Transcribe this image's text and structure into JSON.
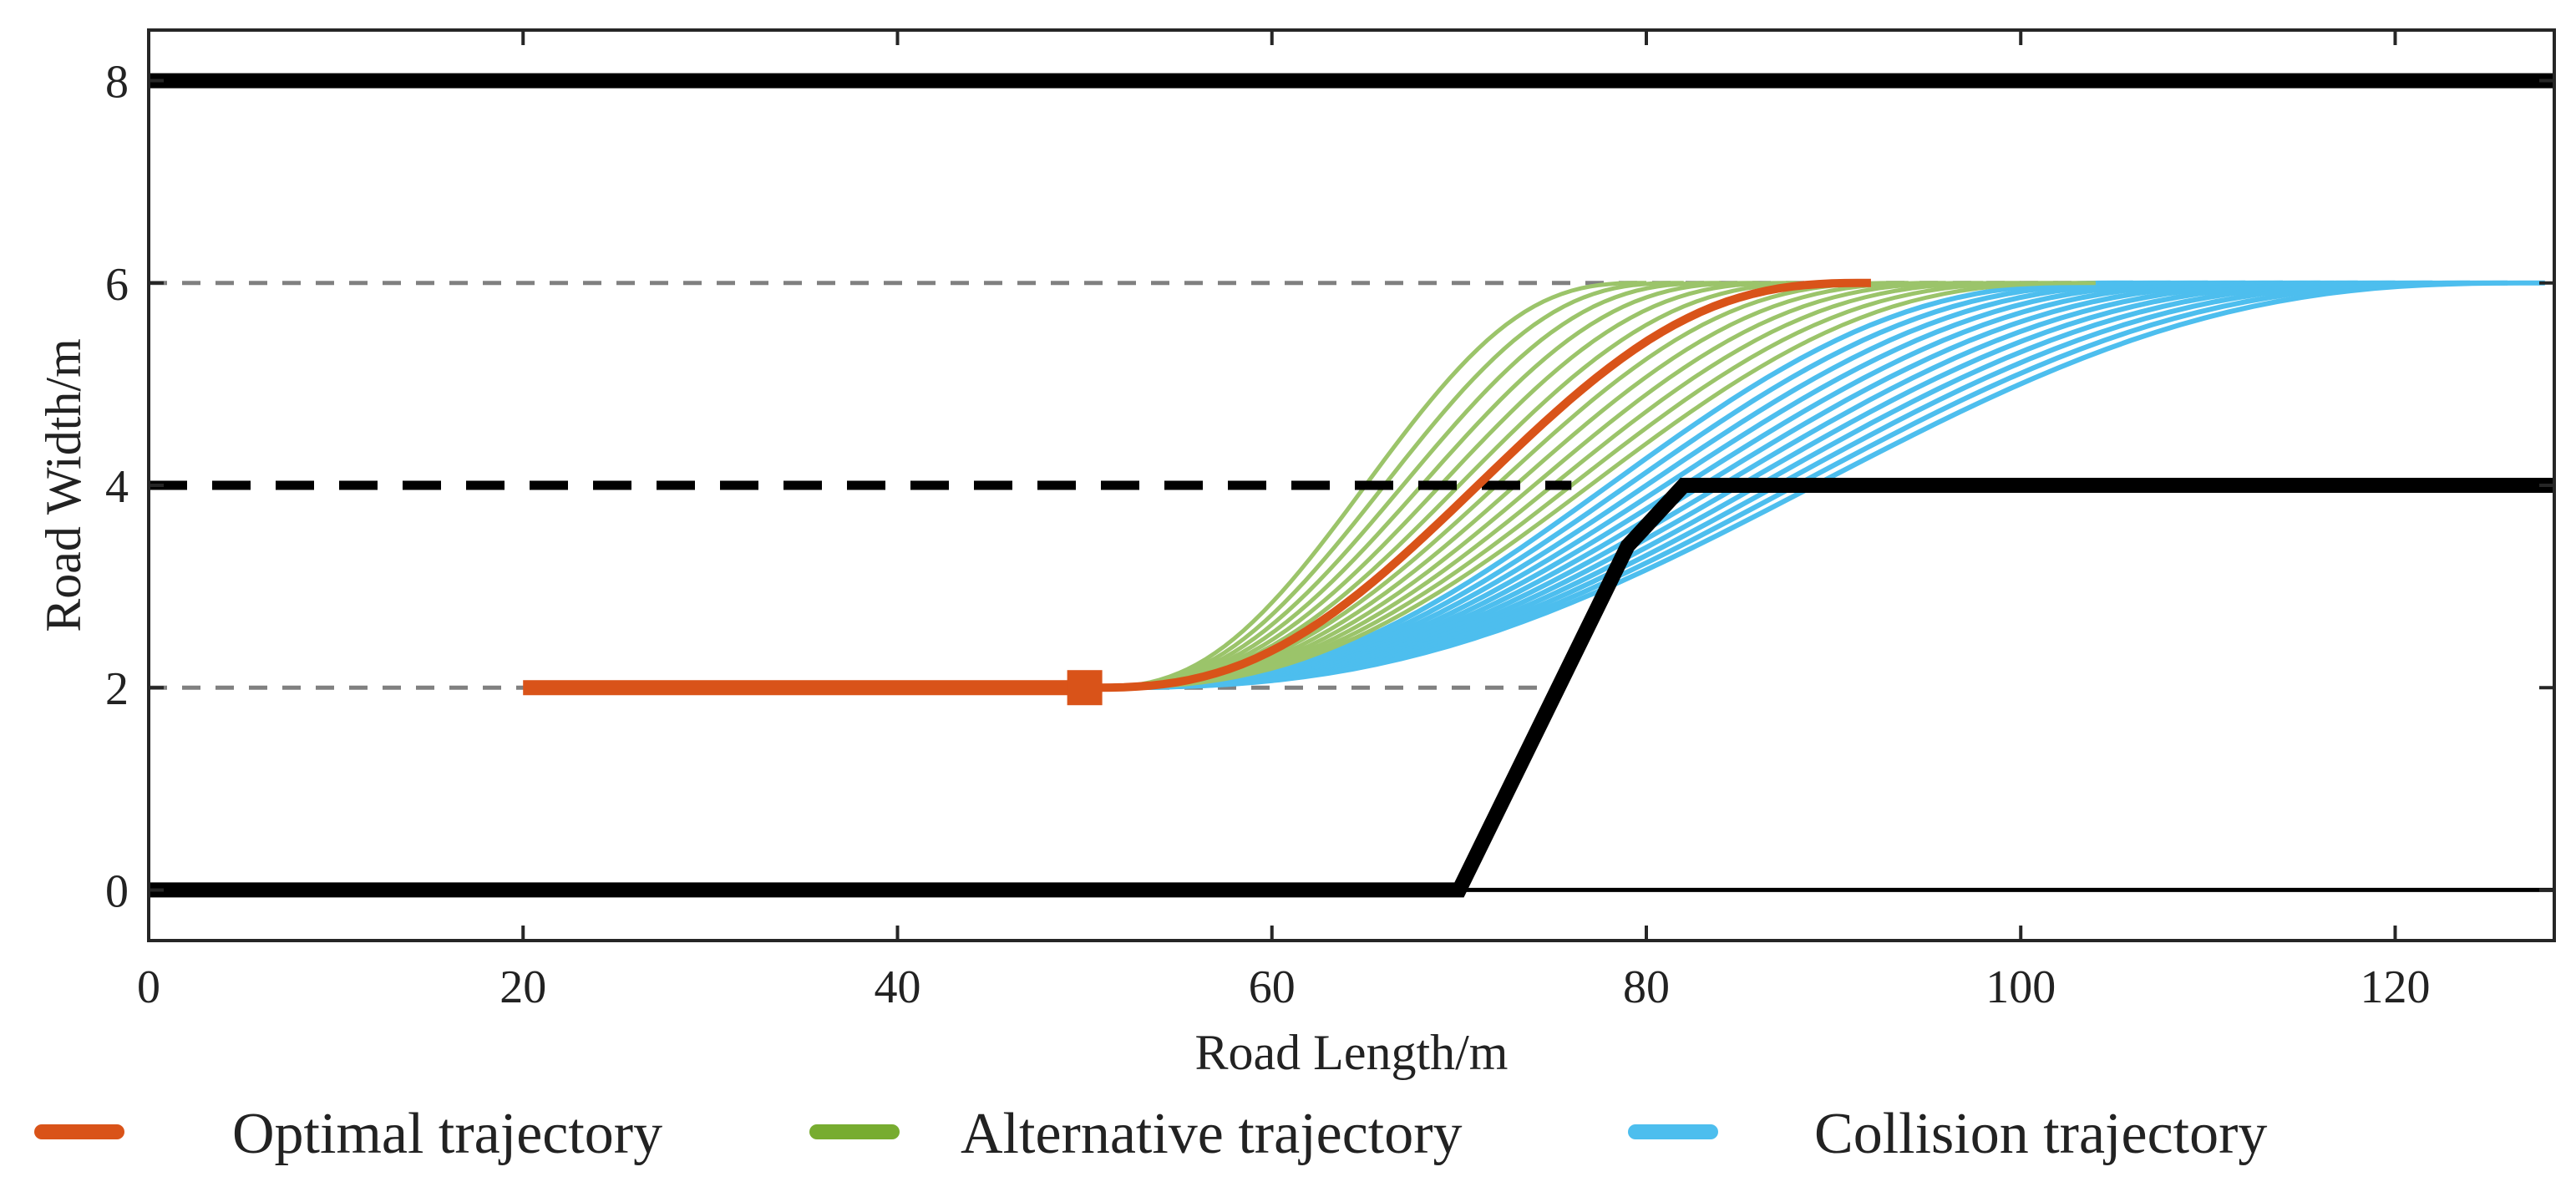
{
  "chart_data": {
    "type": "line",
    "title": "",
    "xlabel": "Road Length/m",
    "ylabel": "Road Width/m",
    "xlim": [
      0,
      128.5
    ],
    "ylim": [
      -0.5,
      8.5
    ],
    "xticks": [
      0,
      20,
      40,
      60,
      80,
      100,
      120
    ],
    "yticks": [
      0,
      2,
      4,
      6,
      8
    ],
    "colors": {
      "optimal": "#d95319",
      "alternative": "#9bc46a",
      "alternative_legend": "#77ac30",
      "collision": "#4dbeee",
      "road": "#000000",
      "lane_guide": "#808080"
    },
    "legend": {
      "position": "bottom",
      "entries": [
        {
          "label": "Optimal trajectory",
          "color": "#d95319"
        },
        {
          "label": "Alternative trajectory",
          "color": "#77ac30"
        },
        {
          "label": "Collision trajectory",
          "color": "#4dbeee"
        }
      ]
    },
    "road_boundaries": [
      {
        "name": "top boundary",
        "style": "solid",
        "points": [
          [
            0,
            8
          ],
          [
            128.5,
            8
          ]
        ]
      },
      {
        "name": "lane divider",
        "style": "dashed",
        "points": [
          [
            0,
            4
          ],
          [
            76,
            4
          ]
        ]
      },
      {
        "name": "bottom boundary",
        "style": "solid",
        "points": [
          [
            0,
            0
          ],
          [
            70,
            0
          ],
          [
            79,
            3.4
          ],
          [
            82,
            4
          ],
          [
            128.5,
            4
          ]
        ]
      },
      {
        "name": "baseline",
        "style": "thin",
        "points": [
          [
            70,
            0
          ],
          [
            128.5,
            0
          ]
        ]
      }
    ],
    "lane_guides": [
      {
        "name": "upper lane centerline",
        "y": 6,
        "x_range": [
          0,
          128.5
        ]
      },
      {
        "name": "lower lane centerline",
        "y": 2,
        "x_range": [
          0,
          75
        ]
      }
    ],
    "trajectory_model": "quintic lane change from y=2 at x_start to y=6 at x_start + length",
    "optimal_trajectory": {
      "straight_segment": {
        "x_start": 20,
        "x_end": 50,
        "y": 2
      },
      "lane_change": {
        "x_start": 50,
        "length": 42,
        "y_start": 2,
        "y_end": 6
      },
      "marker": {
        "shape": "square",
        "x": 50,
        "y": 2
      }
    },
    "alternative_trajectories": {
      "x_start": 50,
      "lengths": [
        30,
        32,
        34,
        36,
        38,
        40,
        44,
        46,
        48,
        50,
        52,
        54
      ],
      "y_start": 2,
      "y_end": 6
    },
    "collision_trajectories": {
      "x_start": 50,
      "lengths": [
        56,
        58,
        60,
        62,
        64,
        66,
        68,
        70,
        72,
        74,
        76,
        78
      ],
      "y_start": 2,
      "y_end": 6
    }
  }
}
